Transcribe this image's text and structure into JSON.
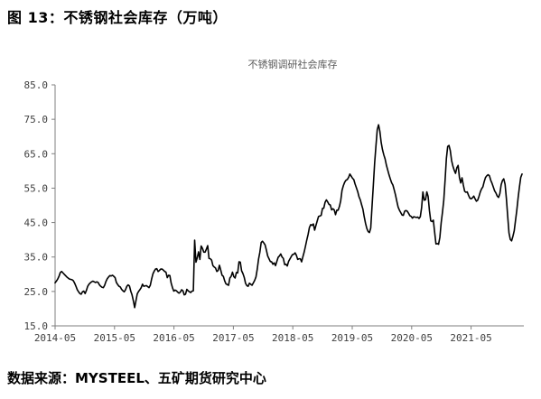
{
  "figure": {
    "caption": "图 13：不锈钢社会库存（万吨）"
  },
  "source": {
    "text": "数据来源：MYSTEEL、五矿期货研究中心"
  },
  "chart_data": {
    "type": "line",
    "title": "不锈钢调研社会库存",
    "xlabel": "",
    "ylabel": "",
    "ylim": [
      15,
      85
    ],
    "yticks": [
      15,
      25,
      35,
      45,
      55,
      65,
      75,
      85
    ],
    "ytick_labels": [
      "15.0",
      "25.0",
      "35.0",
      "45.0",
      "55.0",
      "65.0",
      "75.0",
      "85.0"
    ],
    "xlim": [
      "2014-05",
      "2021-11"
    ],
    "xtick_labels": [
      "2014-05",
      "2015-05",
      "2016-05",
      "2017-05",
      "2018-05",
      "2019-05",
      "2020-05",
      "2021-05"
    ],
    "grid": false,
    "legend": "none",
    "line_color": "#000000",
    "series": [
      {
        "values": [
          27.5,
          28,
          28.6,
          29.4,
          30.5,
          30.8,
          30.4,
          30,
          29.6,
          29.2,
          28.9,
          28.6,
          28.5,
          28.4,
          28.1,
          27.4,
          26.5,
          25.5,
          24.9,
          24.4,
          24.2,
          24.9,
          25.1,
          24.4,
          25.3,
          26.5,
          27.1,
          27.5,
          27.8,
          28,
          27.8,
          27.6,
          27.8,
          27.6,
          26.9,
          26.5,
          26.2,
          26.1,
          26.8,
          27.9,
          28.7,
          29.2,
          29.6,
          29.5,
          29.7,
          29.4,
          29,
          27.6,
          27,
          26.5,
          26.3,
          25.6,
          25.2,
          24.9,
          25.5,
          26.5,
          26.9,
          26.6,
          25.1,
          24,
          22.3,
          20.3,
          22.3,
          24.3,
          25,
          25.5,
          26.1,
          27.1,
          26.5,
          26.6,
          26.7,
          26.4,
          26.1,
          26.8,
          28.6,
          30.1,
          30.9,
          31.5,
          31.6,
          30.8,
          31.1,
          31.5,
          31.5,
          31.2,
          30.8,
          30.6,
          29,
          29.7,
          29.6,
          27.4,
          26.1,
          25.1,
          25.4,
          25.2,
          24.8,
          24.5,
          24.8,
          25.5,
          25.2,
          24,
          24.2,
          25.6,
          25.2,
          24.9,
          24.7,
          25.1,
          25.2,
          39.9,
          33.5,
          34.8,
          36.5,
          34.3,
          38.2,
          37.5,
          36.4,
          36.4,
          37.3,
          38.3,
          34.6,
          34.5,
          34.1,
          32.5,
          32.1,
          31.8,
          30.8,
          31.1,
          32.6,
          31.2,
          29.7,
          29.4,
          28.1,
          27.2,
          27,
          26.8,
          28.9,
          29.4,
          30.6,
          29.3,
          28.9,
          30.5,
          30.4,
          33.6,
          33.5,
          31,
          30.2,
          29.1,
          27.4,
          26.7,
          26.5,
          27.4,
          27.1,
          26.8,
          27.5,
          28.2,
          29.2,
          31.5,
          34.4,
          36.4,
          39.2,
          39.6,
          39.1,
          38.5,
          37,
          35.3,
          34.5,
          33.7,
          33.6,
          32.9,
          33.3,
          32.5,
          33.7,
          34.9,
          35.3,
          35.9,
          35,
          34.6,
          32.8,
          32.9,
          32.4,
          33.7,
          34.4,
          35.1,
          35.7,
          35.8,
          36.2,
          35.5,
          34.3,
          34.5,
          34.5,
          33.6,
          35.1,
          36.5,
          38.2,
          40,
          41.6,
          43.6,
          44.4,
          44.2,
          44.6,
          42.8,
          44.2,
          45.5,
          46.8,
          46.9,
          47.1,
          49.1,
          49.2,
          50.9,
          51.6,
          51,
          50.3,
          50.1,
          48.7,
          49,
          48.7,
          47.3,
          48.6,
          48.6,
          49.7,
          51.4,
          54.4,
          55.7,
          56.7,
          57.3,
          57.5,
          58.1,
          59.1,
          58.5,
          57.9,
          57.5,
          56.2,
          55.1,
          54,
          52.5,
          51.6,
          50.2,
          48.9,
          46.7,
          44.8,
          43.3,
          42.4,
          42.1,
          43.4,
          49.7,
          55.9,
          62.3,
          67.3,
          72,
          73.4,
          71.5,
          68.3,
          66.2,
          64.7,
          63.5,
          61.7,
          60.3,
          58.9,
          57.7,
          56.6,
          55.9,
          54.5,
          53,
          51.2,
          49.5,
          48.6,
          47.9,
          47.2,
          47.1,
          48.3,
          48.5,
          48.3,
          47.7,
          47,
          46.8,
          46.3,
          46.7,
          46.6,
          46.5,
          46.6,
          46.2,
          46.7,
          49.3,
          53.9,
          51.5,
          51.6,
          53.9,
          52.6,
          48.5,
          45.5,
          45.3,
          45.7,
          42.2,
          38.8,
          38.9,
          38.7,
          40.7,
          44.9,
          48,
          51.5,
          57.3,
          63.6,
          67.1,
          67.4,
          65.9,
          63,
          61.4,
          60.2,
          59.3,
          60.9,
          61.6,
          58.1,
          56.5,
          58,
          55.9,
          54.1,
          53.8,
          53.9,
          52.9,
          52.1,
          51.9,
          52.2,
          52.7,
          51.9,
          51.2,
          51.5,
          52.6,
          53.9,
          54.8,
          55.4,
          56.9,
          58.1,
          58.6,
          58.9,
          58.6,
          57.3,
          56.4,
          55.3,
          54.2,
          53.6,
          52.7,
          52.3,
          53.4,
          56,
          57.2,
          57.7,
          56.1,
          52,
          46.9,
          42,
          40.1,
          39.7,
          41,
          42.6,
          45.6,
          48.6,
          52.2,
          55.3,
          58.1,
          59.1
        ]
      }
    ]
  }
}
